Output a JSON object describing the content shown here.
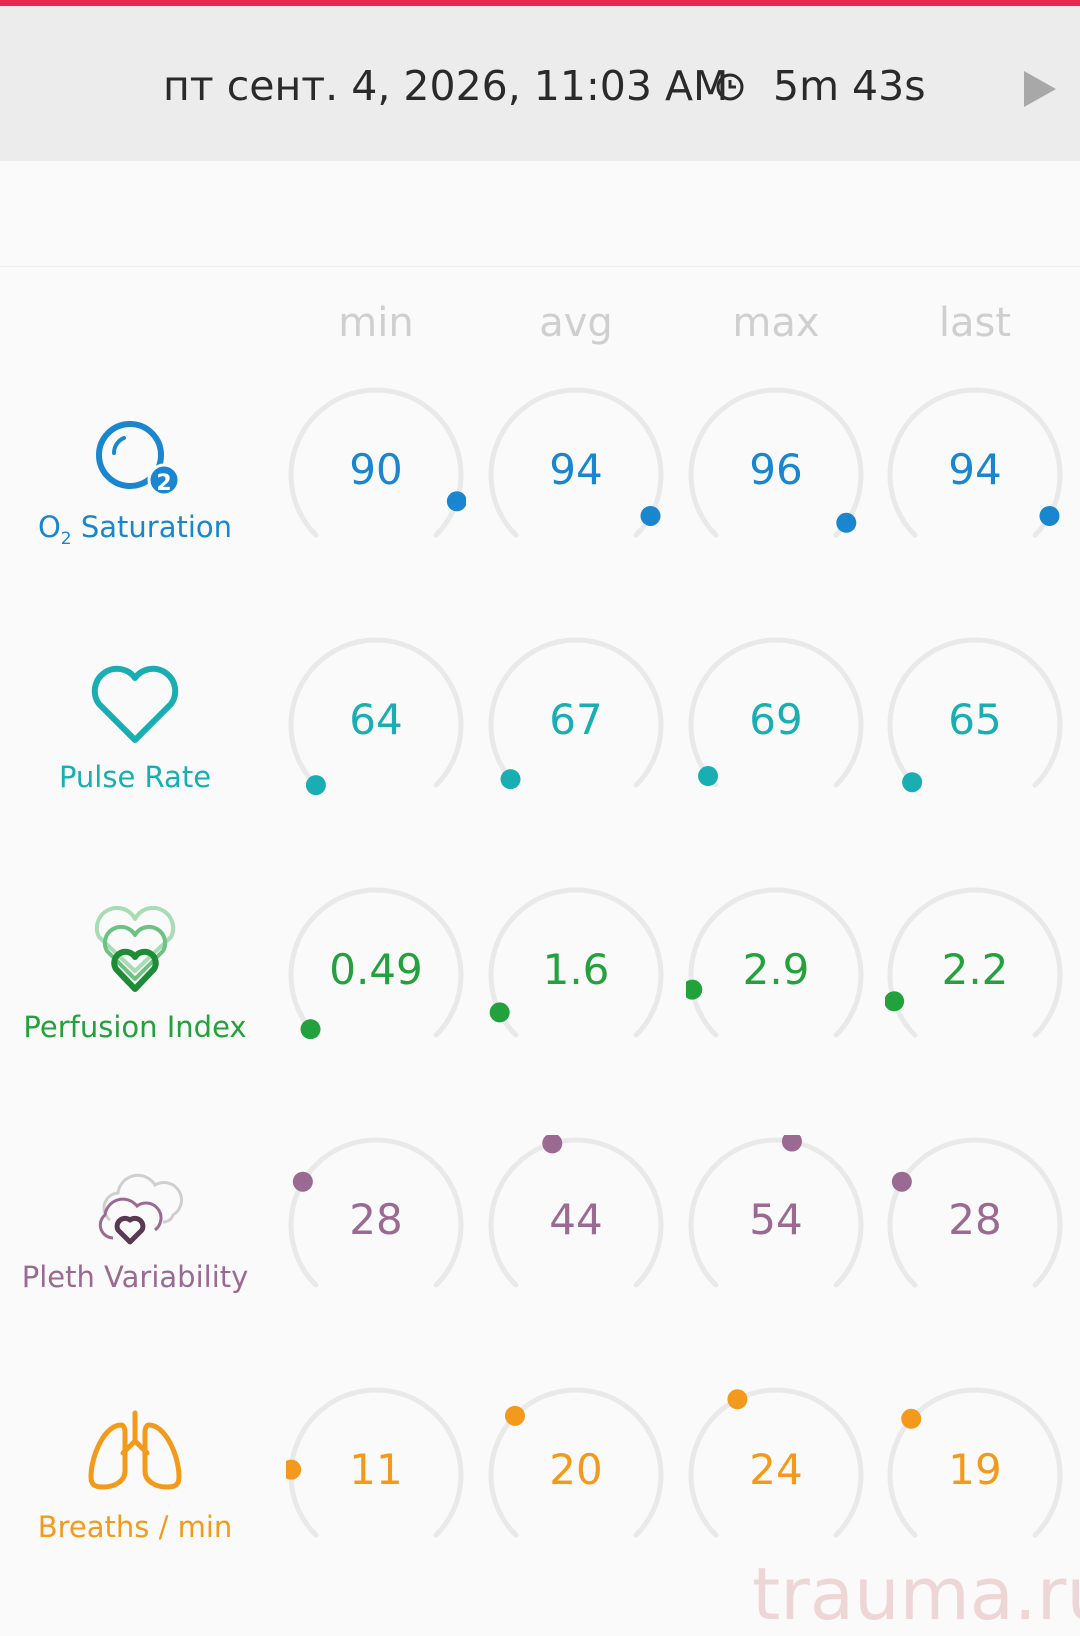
{
  "header": {
    "datetime": "пт сент. 4, 2026, 11:03 AM",
    "duration": "5m 43s",
    "clock_icon": "clock-icon",
    "play_icon": "play-icon"
  },
  "columns": [
    "min",
    "avg",
    "max",
    "last"
  ],
  "metrics": [
    {
      "key": "o2",
      "label_main": "O",
      "label_sub": "2",
      "label_rest": " Saturation",
      "icon": "o2-bubble-icon",
      "color": "#1a86d0",
      "values": [
        "90",
        "94",
        "96",
        "94"
      ],
      "levels": [
        0.9,
        0.94,
        0.96,
        0.94
      ]
    },
    {
      "key": "pulse",
      "label": "Pulse Rate",
      "icon": "heart-icon",
      "color": "#19aeb2",
      "values": [
        "64",
        "67",
        "69",
        "65"
      ],
      "levels": [
        0.0,
        0.02,
        0.03,
        0.01
      ]
    },
    {
      "key": "pi",
      "label": "Perfusion Index",
      "icon": "stacked-hearts-icon",
      "color": "#22a13c",
      "values": [
        "0.49",
        "1.6",
        "2.9",
        "2.2"
      ],
      "levels": [
        0.02,
        0.07,
        0.13,
        0.1
      ]
    },
    {
      "key": "pvi",
      "label": "Pleth Variability",
      "icon": "cloud-heart-icon",
      "color": "#9a6a92",
      "values": [
        "28",
        "44",
        "54",
        "28"
      ],
      "levels": [
        0.28,
        0.44,
        0.54,
        0.28
      ]
    },
    {
      "key": "resp",
      "label": "Breaths / min",
      "icon": "lungs-icon",
      "color": "#f39a1c",
      "values": [
        "11",
        "20",
        "24",
        "19"
      ],
      "levels": [
        0.18,
        0.33,
        0.4,
        0.32
      ]
    }
  ],
  "watermark": "trauma.ru"
}
